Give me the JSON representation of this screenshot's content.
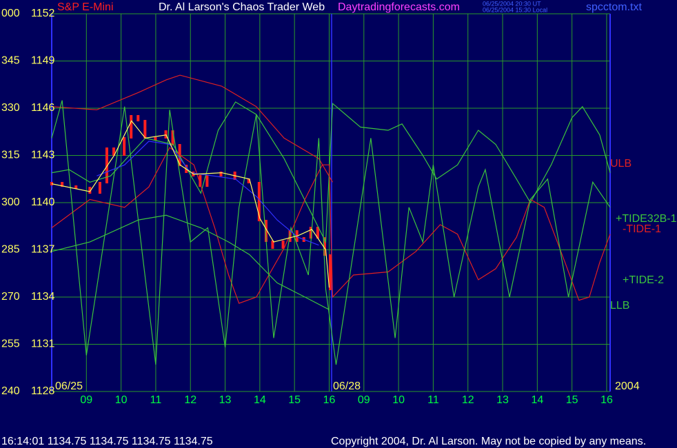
{
  "chart_data": {
    "type": "line",
    "title": "Dr. Al Larson's Chaos Trader Web",
    "website": "Daytradingforecasts.com",
    "timestamps": [
      "06/25/2004 20:30 UT",
      "06/25/2004 15:30 Local"
    ],
    "file": "spcctom.txt",
    "date_labels": [
      "06/25",
      "06/28",
      "2004"
    ],
    "status": "16:14:01  1134.75 1134.75 1134.75 1134.75",
    "copyright": "Copyright 2004, Dr. Al Larson. May not be copied by any means.",
    "grid": true,
    "xlim": [
      0,
      16.1
    ],
    "xticks": [
      {
        "value": 1,
        "label": "09"
      },
      {
        "value": 2,
        "label": "10"
      },
      {
        "value": 3,
        "label": "11"
      },
      {
        "value": 4,
        "label": "12"
      },
      {
        "value": 5,
        "label": "13"
      },
      {
        "value": 6,
        "label": "14"
      },
      {
        "value": 7,
        "label": "15"
      },
      {
        "value": 8,
        "label": "16"
      },
      {
        "value": 9,
        "label": "09"
      },
      {
        "value": 10,
        "label": "10"
      },
      {
        "value": 11,
        "label": "11"
      },
      {
        "value": 12,
        "label": "12"
      },
      {
        "value": 13,
        "label": "13"
      },
      {
        "value": 14,
        "label": "14"
      },
      {
        "value": 15,
        "label": "15"
      },
      {
        "value": 16,
        "label": "16"
      }
    ],
    "ylim": [
      1128,
      1152
    ],
    "yticks": [
      1128,
      1131,
      1134,
      1137,
      1140,
      1143,
      1146,
      1149,
      1152
    ],
    "y2lim": [
      240,
      360
    ],
    "y2ticks": [
      240,
      255,
      270,
      285,
      300,
      315,
      330,
      345,
      {
        "value": 360,
        "label": "000"
      }
    ],
    "series": [
      {
        "name": "S&P E-Mini",
        "mark": "bar",
        "color": "#ff2020",
        "x": [
          0,
          0.3,
          0.7,
          1.1,
          1.39,
          1.59,
          1.79,
          2.09,
          2.29,
          2.49,
          2.69,
          2.99,
          3.29,
          3.49,
          3.69,
          3.88,
          4.08,
          4.28,
          4.48,
          4.88,
          5.28,
          5.68,
          5.98,
          6.18,
          6.37,
          6.67,
          6.87,
          7.07,
          7.27,
          7.47,
          7.67,
          7.87,
          8.03
        ],
        "values": [
          1141.27,
          1141.05,
          1140.96,
          1140.61,
          1141.27,
          1143.46,
          1143.02,
          1144.12,
          1145.52,
          1145.21,
          1144.12,
          1144.12,
          1144.55,
          1143.68,
          1142.36,
          1141.93,
          1141.71,
          1141.05,
          1141.71,
          1141.93,
          1141.49,
          1141.27,
          1138.86,
          1137.55,
          1137.11,
          1137.55,
          1138.2,
          1137.55,
          1137.76,
          1138.42,
          1137.76,
          1136.67,
          1134.48
        ]
      },
      {
        "name": "ULB",
        "color": "#e02020",
        "x": [
          0,
          1.3,
          2.5,
          3.3,
          3.7,
          4.9,
          5.9,
          6.7,
          7.7,
          8.1
        ],
        "values": [
          1146.1,
          1145.9,
          1147.0,
          1147.8,
          1148.1,
          1147.4,
          1146.1,
          1144.1,
          1142.8,
          1141.3
        ]
      },
      {
        "name": "+TIDE32B-1",
        "color": "#3cc43c",
        "x": [
          0,
          0.5,
          1.1,
          1.7,
          2.7,
          3.5,
          4.3,
          4.8,
          5.3,
          5.9,
          6.7,
          7.4,
          7.9,
          8.1,
          8.9,
          9.7,
          10.1,
          10.7,
          11.1,
          11.7,
          12.3,
          12.8,
          13.4,
          13.8,
          14.4,
          15.0,
          15.3,
          15.8,
          16.1
        ],
        "values": [
          1141.9,
          1142.1,
          1141.3,
          1141.7,
          1144.1,
          1143.7,
          1140.6,
          1144.6,
          1146.4,
          1145.6,
          1142.8,
          1139.7,
          1137.5,
          1146.3,
          1144.8,
          1144.6,
          1145.0,
          1143.0,
          1141.5,
          1142.4,
          1144.6,
          1143.7,
          1141.5,
          1140.0,
          1142.4,
          1145.4,
          1146.1,
          1144.3,
          1141.9
        ]
      },
      {
        "name": "-TIDE-1",
        "color": "#e02020",
        "x": [
          0,
          1.1,
          2.1,
          2.8,
          3.4,
          4.1,
          4.7,
          5.1,
          5.4,
          5.9,
          6.7,
          7.3,
          7.8,
          8.0,
          8.1,
          8.7,
          9.7,
          10.5,
          11.2,
          11.7,
          12.3,
          12.8,
          13.4,
          13.8,
          14.2,
          14.8,
          15.2,
          15.5,
          15.8,
          16.1
        ],
        "values": [
          1138.4,
          1140.2,
          1139.7,
          1141.0,
          1143.5,
          1142.4,
          1138.4,
          1135.4,
          1133.6,
          1134.0,
          1137.1,
          1140.2,
          1142.4,
          1142.4,
          1134.0,
          1135.4,
          1135.6,
          1136.9,
          1138.6,
          1138.0,
          1135.1,
          1135.8,
          1137.8,
          1140.2,
          1139.7,
          1136.2,
          1133.8,
          1134.0,
          1136.2,
          1138.0
        ]
      },
      {
        "name": "+TIDE-2",
        "color": "#3cc43c",
        "x": [
          0,
          0.3,
          1.0,
          2.1,
          3.0,
          3.4,
          4.0,
          4.5,
          5.0,
          5.4,
          5.9,
          6.4,
          6.9,
          7.4,
          7.7,
          7.9,
          8.2,
          9.2,
          9.9,
          10.3,
          10.7,
          11.0,
          11.6,
          12.3,
          12.5,
          13.2,
          13.8,
          14.3,
          14.9,
          15.6,
          16.1
        ],
        "values": [
          1144.1,
          1146.5,
          1130.3,
          1146.1,
          1129.7,
          1145.9,
          1137.5,
          1138.4,
          1130.8,
          1139.7,
          1145.6,
          1131.4,
          1138.4,
          1135.4,
          1144.1,
          1134.5,
          1129.7,
          1144.1,
          1131.4,
          1139.7,
          1137.5,
          1142.4,
          1134.0,
          1141.0,
          1142.1,
          1134.0,
          1140.2,
          1141.5,
          1134.0,
          1141.3,
          1139.7
        ]
      },
      {
        "name": "LLB",
        "color": "#3cc43c",
        "x": [
          0,
          1.1,
          2.5,
          3.3,
          4.3,
          5.1,
          5.7,
          6.5,
          7.3,
          8.0
        ],
        "values": [
          1136.9,
          1137.5,
          1138.9,
          1139.2,
          1138.4,
          1137.5,
          1136.7,
          1134.9,
          1134.0,
          1133.2
        ]
      },
      {
        "color": "#3030ff",
        "x": [
          1.3,
          2.1,
          2.8,
          3.4,
          4.0,
          5.3,
          5.9,
          6.5,
          7.1,
          7.7
        ],
        "values": [
          1141.7,
          1142.4,
          1143.9,
          1143.7,
          1141.9,
          1141.5,
          1140.4,
          1138.9,
          1137.8,
          1137.3
        ]
      },
      {
        "color": "#ffff60",
        "x": [
          0,
          1.1,
          1.8,
          2.3,
          2.7,
          3.3,
          3.7,
          4.1,
          4.9,
          5.7,
          6.0,
          6.4,
          7.1,
          7.5,
          7.9,
          8.0
        ],
        "values": [
          1141.2,
          1140.7,
          1143.0,
          1145.2,
          1144.1,
          1144.3,
          1142.4,
          1141.8,
          1141.9,
          1141.5,
          1139.0,
          1137.5,
          1137.9,
          1138.3,
          1137.0,
          1134.6
        ]
      }
    ]
  }
}
